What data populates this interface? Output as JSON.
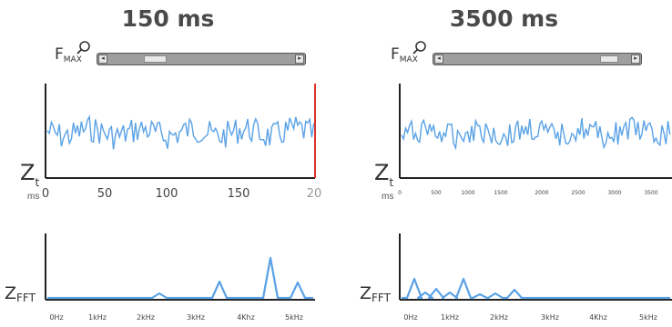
{
  "left": {
    "title": "150 ms",
    "fmax": {
      "base": "F",
      "sub": "MAX"
    },
    "zoom_icon": "magnifier-icon",
    "zoom_position": [
      0.19,
      0.31
    ],
    "zt": {
      "base": "Z",
      "sub": "t"
    },
    "zfft": {
      "base": "Z",
      "sub": "FFT"
    },
    "time_unit": "ms",
    "time_ticks": [
      "0",
      "50",
      "100",
      "150",
      "20"
    ],
    "freq_ticks": [
      "0Hz",
      "1kHz",
      "2kHz",
      "3kHz",
      "4Khz",
      "5kHz"
    ],
    "cursor_color": "#d9342b"
  },
  "right": {
    "title": "3500 ms",
    "fmax": {
      "base": "F",
      "sub": "MAX"
    },
    "zoom_icon": "magnifier-icon",
    "zoom_position": [
      0.84,
      0.94
    ],
    "zt": {
      "base": "Z",
      "sub": "t"
    },
    "zfft": {
      "base": "Z",
      "sub": "FFT"
    },
    "time_unit": "ms",
    "time_ticks": [
      "0",
      "500",
      "1000",
      "1500",
      "2000",
      "2500",
      "3000",
      "3500"
    ],
    "freq_ticks": [
      "0Hz",
      "1kHz",
      "2kHz",
      "3kHz",
      "4Khz",
      "5kHz"
    ]
  },
  "colors": {
    "signal": "#5aa2e6",
    "axis": "#222222",
    "text": "#444444"
  }
}
